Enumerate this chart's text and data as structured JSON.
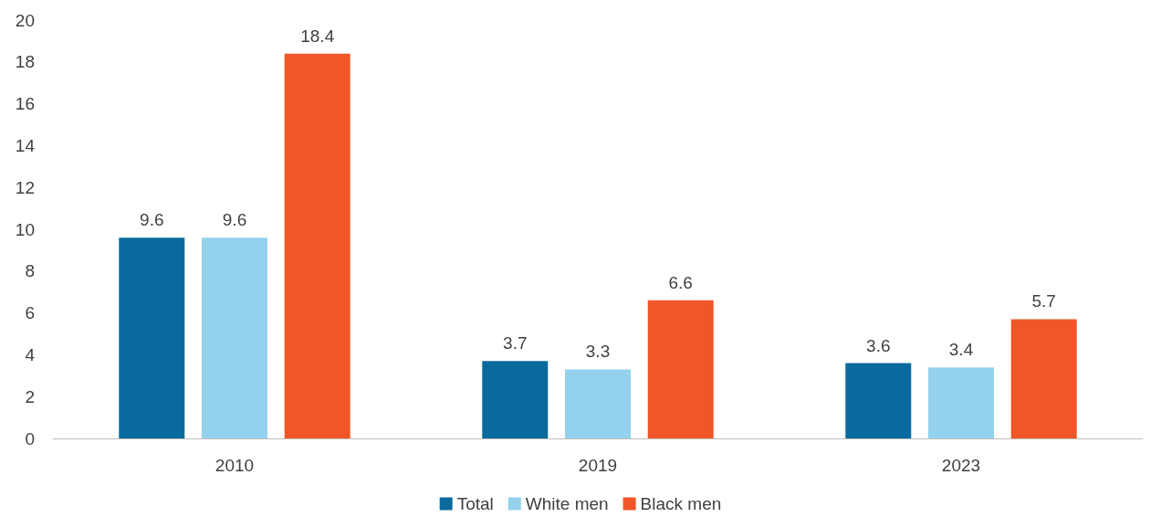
{
  "chart_data": {
    "type": "bar",
    "categories": [
      "2010",
      "2019",
      "2023"
    ],
    "series": [
      {
        "name": "Total",
        "color": "#0a6a9e",
        "values": [
          9.6,
          3.7,
          3.6
        ]
      },
      {
        "name": "White men",
        "color": "#94d1ec",
        "values": [
          9.6,
          3.3,
          3.4
        ]
      },
      {
        "name": "Black men",
        "color": "#f15628",
        "values": [
          18.4,
          6.6,
          5.7
        ]
      }
    ],
    "ylim": [
      0,
      20
    ],
    "yticks": [
      0,
      2,
      4,
      6,
      8,
      10,
      12,
      14,
      16,
      18,
      20
    ],
    "grid": false,
    "legend": "bottom",
    "data_labels": true
  }
}
